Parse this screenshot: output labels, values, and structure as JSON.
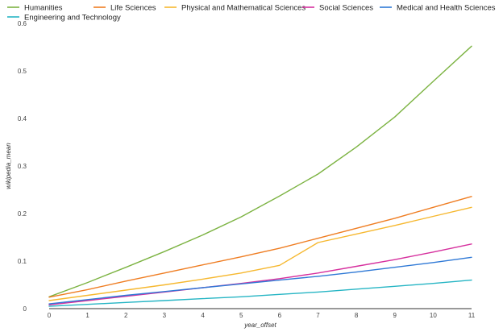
{
  "chart_data": {
    "type": "line",
    "title": "",
    "xlabel": "year_offset",
    "ylabel": "wikipedia_mean",
    "x": [
      0,
      1,
      2,
      3,
      4,
      5,
      6,
      7,
      8,
      9,
      10,
      11
    ],
    "xticks": [
      0,
      1,
      2,
      3,
      4,
      5,
      6,
      7,
      8,
      9,
      10,
      11
    ],
    "yticks": [
      0,
      0.1,
      0.2,
      0.3,
      0.4,
      0.5,
      0.6
    ],
    "ytick_labels": [
      "0",
      "0.1",
      "0.2",
      "0.3",
      "0.4",
      "0.5",
      "0.6"
    ],
    "xlim": [
      0,
      11
    ],
    "ylim": [
      0,
      0.6
    ],
    "grid": false,
    "legend_position": "top",
    "series": [
      {
        "name": "Humanities",
        "color": "#7cb342",
        "values": [
          0.025,
          0.055,
          0.087,
          0.12,
          0.155,
          0.193,
          0.237,
          0.283,
          0.34,
          0.403,
          0.478,
          0.552
        ]
      },
      {
        "name": "Life Sciences",
        "color": "#ef7d22",
        "values": [
          0.024,
          0.04,
          0.058,
          0.075,
          0.092,
          0.109,
          0.127,
          0.148,
          0.169,
          0.19,
          0.213,
          0.236
        ]
      },
      {
        "name": "Physical and Mathematical Sciences",
        "color": "#f6b830",
        "values": [
          0.017,
          0.028,
          0.039,
          0.05,
          0.062,
          0.075,
          0.091,
          0.139,
          0.157,
          0.175,
          0.194,
          0.213
        ]
      },
      {
        "name": "Social Sciences",
        "color": "#d6309e",
        "values": [
          0.008,
          0.017,
          0.026,
          0.035,
          0.044,
          0.053,
          0.063,
          0.075,
          0.089,
          0.103,
          0.119,
          0.136
        ]
      },
      {
        "name": "Medical and Health Sciences",
        "color": "#2f79d6",
        "values": [
          0.01,
          0.019,
          0.028,
          0.036,
          0.044,
          0.052,
          0.06,
          0.068,
          0.077,
          0.087,
          0.097,
          0.108
        ]
      },
      {
        "name": "Engineering and Technology",
        "color": "#26b5c4",
        "values": [
          0.005,
          0.009,
          0.013,
          0.017,
          0.021,
          0.025,
          0.03,
          0.035,
          0.041,
          0.047,
          0.053,
          0.06
        ]
      }
    ]
  }
}
